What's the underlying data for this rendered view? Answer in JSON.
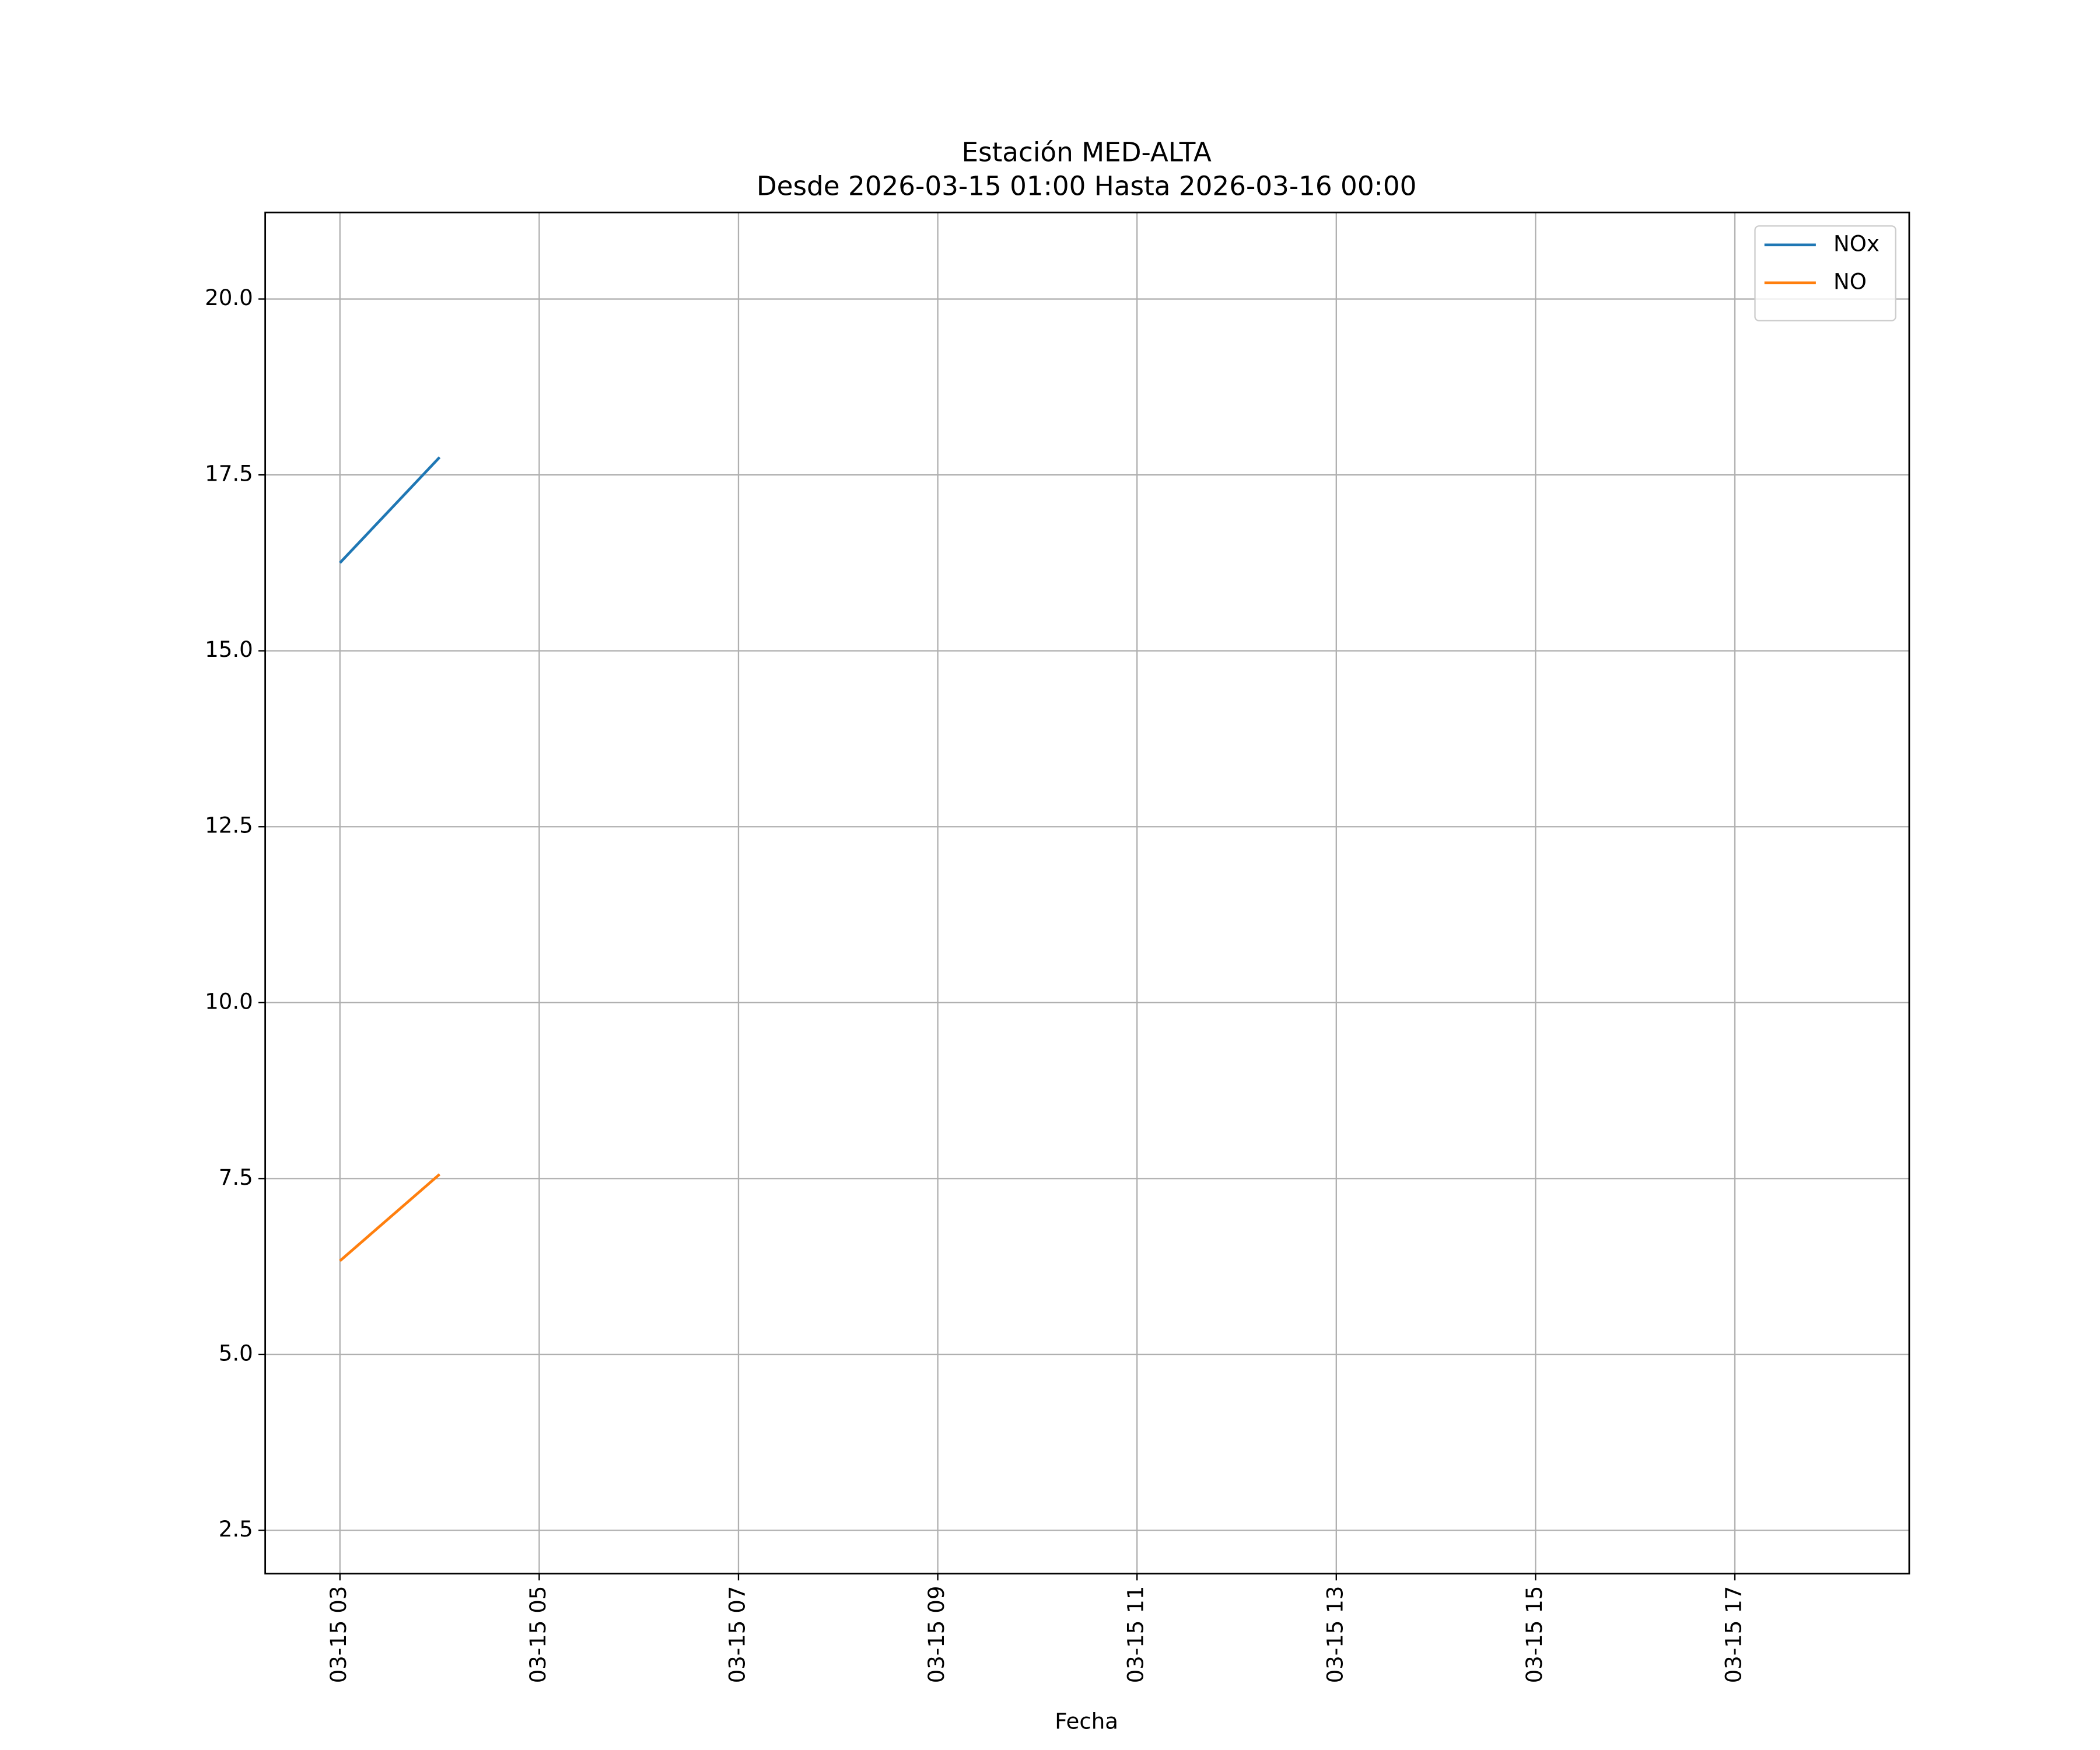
{
  "chart_data": {
    "type": "line",
    "title": "Estación MED-ALTA",
    "subtitle": "Desde 2026-03-15 01:00 Hasta 2026-03-16 00:00",
    "x_label": "Fecha",
    "x": [
      "03-15 03",
      "03-15 04"
    ],
    "series": [
      {
        "name": "NOx",
        "color": "#1f77b4",
        "values": [
          16.25,
          17.75
        ]
      },
      {
        "name": "NO",
        "color": "#ff7f0e",
        "values": [
          6.33,
          7.56
        ]
      }
    ],
    "xlim": [
      "03-15 02:15",
      "03-15 18:45"
    ],
    "xticks": [
      "03-15 03",
      "03-15 05",
      "03-15 07",
      "03-15 09",
      "03-15 11",
      "03-15 13",
      "03-15 15",
      "03-15 17"
    ],
    "ylim": [
      1.885,
      21.23
    ],
    "yticks": [
      {
        "value": 2.5,
        "label": "2.5"
      },
      {
        "value": 5,
        "label": "5.0"
      },
      {
        "value": 7.5,
        "label": "7.5"
      },
      {
        "value": 10,
        "label": "10.0"
      },
      {
        "value": 12.5,
        "label": "12.5"
      },
      {
        "value": 15,
        "label": "15.0"
      },
      {
        "value": 17.5,
        "label": "17.5"
      },
      {
        "value": 20,
        "label": "20.0"
      }
    ],
    "grid": true,
    "legend": "upper right"
  }
}
